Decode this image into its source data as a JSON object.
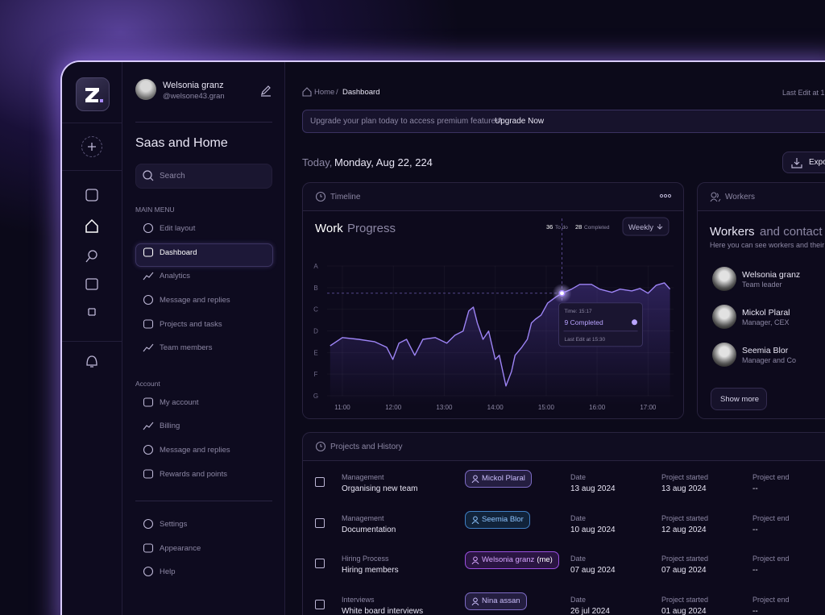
{
  "profile": {
    "name": "Welsonia granz",
    "handle": "@welsone43.gran"
  },
  "workspace": "Saas and Home",
  "search": "Search",
  "main_menu": {
    "title": "MAIN MENU",
    "items": [
      "Edit layout",
      "Dashboard",
      "Analytics",
      "Message and replies",
      "Projects and tasks",
      "Team members"
    ]
  },
  "account_menu": {
    "title": "Account",
    "items": [
      "My account",
      "Billing",
      "Message and replies",
      "Rewards and points"
    ]
  },
  "bottom_menu": [
    "Settings",
    "Appearance",
    "Help"
  ],
  "breadcrumb": [
    "Home",
    "Dashboard"
  ],
  "last_edit": "Last  Edit at 1",
  "banner": {
    "text": "Upgrade your plan today to access premium features!",
    "link": "Upgrade Now"
  },
  "date": {
    "prefix": "Today,",
    "value": "Monday, Aug 22, 224"
  },
  "export": "Expo",
  "timeline": {
    "header": "Timeline"
  },
  "chart_data": {
    "type": "line",
    "title": "Work",
    "title_rest": "Progress",
    "todo": {
      "count": 36,
      "label": "To do"
    },
    "completed": {
      "count": 28,
      "label": "Completed"
    },
    "period": "Weekly",
    "color": "#9d84f5",
    "x": [
      10.76,
      11.0,
      11.32,
      11.63,
      11.87,
      11.99,
      12.11,
      12.26,
      12.42,
      12.58,
      12.82,
      13.05,
      13.21,
      13.37,
      13.48,
      13.57,
      13.65,
      13.76,
      13.87,
      14.0,
      14.08,
      14.21,
      14.32,
      14.39,
      14.52,
      14.63,
      14.71,
      14.79,
      14.9,
      15.03,
      15.18,
      15.31,
      15.5,
      15.66,
      15.89,
      16.05,
      16.29,
      16.45,
      16.68,
      16.84,
      17.0,
      17.16,
      17.32,
      17.43
    ],
    "values": [
      2.31,
      2.69,
      2.61,
      2.5,
      2.24,
      1.68,
      2.43,
      2.61,
      1.87,
      2.61,
      2.69,
      2.43,
      2.8,
      2.99,
      3.92,
      4.1,
      3.36,
      2.61,
      2.99,
      1.68,
      1.87,
      0.45,
      1.12,
      1.87,
      2.24,
      2.61,
      3.36,
      3.54,
      3.73,
      4.29,
      4.55,
      4.74,
      4.93,
      5.15,
      5.15,
      4.93,
      4.78,
      4.93,
      4.85,
      4.96,
      4.74,
      5.11,
      5.22,
      4.93
    ],
    "xlim": [
      10.7,
      17.5
    ],
    "ylim": [
      0,
      6
    ],
    "xticks": [
      {
        "value": 11,
        "label": "11:00"
      },
      {
        "value": 12,
        "label": "12:00"
      },
      {
        "value": 13,
        "label": "13:00"
      },
      {
        "value": 14,
        "label": "14:00"
      },
      {
        "value": 15,
        "label": "15:00"
      },
      {
        "value": 16,
        "label": "16:00"
      },
      {
        "value": 17,
        "label": "17:00"
      }
    ],
    "yticks": [
      {
        "value": 6,
        "label": "A"
      },
      {
        "value": 5,
        "label": "B"
      },
      {
        "value": 4,
        "label": "C"
      },
      {
        "value": 3,
        "label": "D"
      },
      {
        "value": 2,
        "label": "E"
      },
      {
        "value": 1,
        "label": "F"
      },
      {
        "value": 0,
        "label": "G"
      }
    ],
    "grid": true,
    "highlight_point": 31,
    "tooltip": {
      "time": "Time: 15:17",
      "status": "9 Completed",
      "last_edit": "Last Edit at 15:30"
    }
  },
  "workers": {
    "header": "Workers",
    "title": "Workers",
    "title_rest": "and contact",
    "subtitle": "Here you can see workers and their",
    "people": [
      {
        "name": "Welsonia granz",
        "role": "Team leader"
      },
      {
        "name": "Mickol Plaral",
        "role": "Manager, CEX"
      },
      {
        "name": "Seemia Blor",
        "role": "Manager and Co"
      }
    ],
    "button": "Show more"
  },
  "projects": {
    "header": "Projects and History",
    "columns": [
      "Date",
      "Project started",
      "Project end"
    ],
    "rows": [
      {
        "category": "Management",
        "title": "Organising new team",
        "assignee": "Mickol Plaral",
        "date": "13 aug 2024",
        "started": "13 aug 2024",
        "end": "--"
      },
      {
        "category": "Management",
        "title": "Documentation",
        "assignee": "Seemia Blor",
        "date": "10 aug 2024",
        "started": "12 aug 2024",
        "end": "--"
      },
      {
        "category": "Hiring Process",
        "title": "Hiring members",
        "assignee": "Welsonia granz",
        "assignee_note": "(me)",
        "date": "07 aug 2024",
        "started": "07 aug 2024",
        "end": "--"
      },
      {
        "category": "Interviews",
        "title": "White board interviews",
        "assignee": "Nina assan",
        "date": "26 jul 2024",
        "started": "01 aug 2024",
        "end": "--"
      }
    ]
  }
}
